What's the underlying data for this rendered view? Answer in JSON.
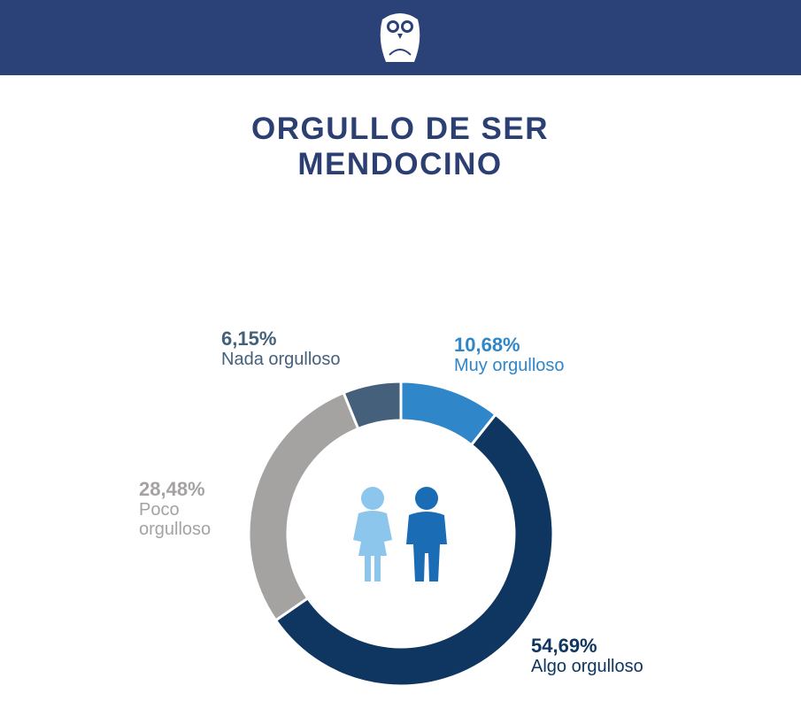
{
  "chart_data": {
    "type": "donut",
    "title": "ORGULLO DE SER MENDOCINO",
    "categories": [
      "Muy orgulloso",
      "Algo orgulloso",
      "Poco orgulloso",
      "Nada orgulloso"
    ],
    "values": [
      10.68,
      54.69,
      28.48,
      6.15
    ],
    "value_labels": [
      "10,68%",
      "54,69%",
      "28,48%",
      "6,15%"
    ],
    "colors": [
      "#2f86c8",
      "#0f3661",
      "#a5a2a2",
      "#44607a"
    ]
  }
}
